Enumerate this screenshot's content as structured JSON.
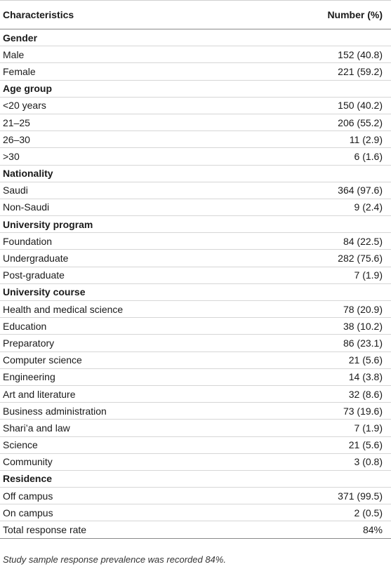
{
  "table": {
    "headers": {
      "characteristic": "Characteristics",
      "number": "Number (%)"
    },
    "rows": [
      {
        "type": "section",
        "label": "Gender",
        "value": ""
      },
      {
        "type": "row",
        "label": "Male",
        "value": "152 (40.8)"
      },
      {
        "type": "row",
        "label": "Female",
        "value": "221 (59.2)"
      },
      {
        "type": "section",
        "label": "Age group",
        "value": ""
      },
      {
        "type": "row",
        "label": "<20 years",
        "value": "150 (40.2)"
      },
      {
        "type": "row",
        "label": "21–25",
        "value": "206 (55.2)"
      },
      {
        "type": "row",
        "label": "26–30",
        "value": "11 (2.9)"
      },
      {
        "type": "row",
        "label": ">30",
        "value": "6 (1.6)"
      },
      {
        "type": "section",
        "label": "Nationality",
        "value": ""
      },
      {
        "type": "row",
        "label": "Saudi",
        "value": "364 (97.6)"
      },
      {
        "type": "row",
        "label": "Non-Saudi",
        "value": "9 (2.4)"
      },
      {
        "type": "section",
        "label": "University program",
        "value": ""
      },
      {
        "type": "row",
        "label": "Foundation",
        "value": "84 (22.5)"
      },
      {
        "type": "row",
        "label": "Undergraduate",
        "value": "282 (75.6)"
      },
      {
        "type": "row",
        "label": "Post-graduate",
        "value": "7 (1.9)"
      },
      {
        "type": "section",
        "label": "University course",
        "value": ""
      },
      {
        "type": "row",
        "label": "Health and medical science",
        "value": "78 (20.9)"
      },
      {
        "type": "row",
        "label": "Education",
        "value": "38 (10.2)"
      },
      {
        "type": "row",
        "label": "Preparatory",
        "value": "86 (23.1)"
      },
      {
        "type": "row",
        "label": "Computer science",
        "value": "21 (5.6)"
      },
      {
        "type": "row",
        "label": "Engineering",
        "value": "14 (3.8)"
      },
      {
        "type": "row",
        "label": "Art and literature",
        "value": "32 (8.6)"
      },
      {
        "type": "row",
        "label": "Business administration",
        "value": "73 (19.6)"
      },
      {
        "type": "row",
        "label": "Shari’a and law",
        "value": "7 (1.9)"
      },
      {
        "type": "row",
        "label": "Science",
        "value": "21 (5.6)"
      },
      {
        "type": "row",
        "label": "Community",
        "value": "3 (0.8)"
      },
      {
        "type": "section",
        "label": "Residence",
        "value": ""
      },
      {
        "type": "row",
        "label": "Off campus",
        "value": "371 (99.5)"
      },
      {
        "type": "row",
        "label": "On campus",
        "value": "2 (0.5)"
      },
      {
        "type": "row",
        "label": "Total response rate",
        "value": "84%"
      }
    ]
  },
  "footnote": "Study sample response prevalence was recorded 84%."
}
